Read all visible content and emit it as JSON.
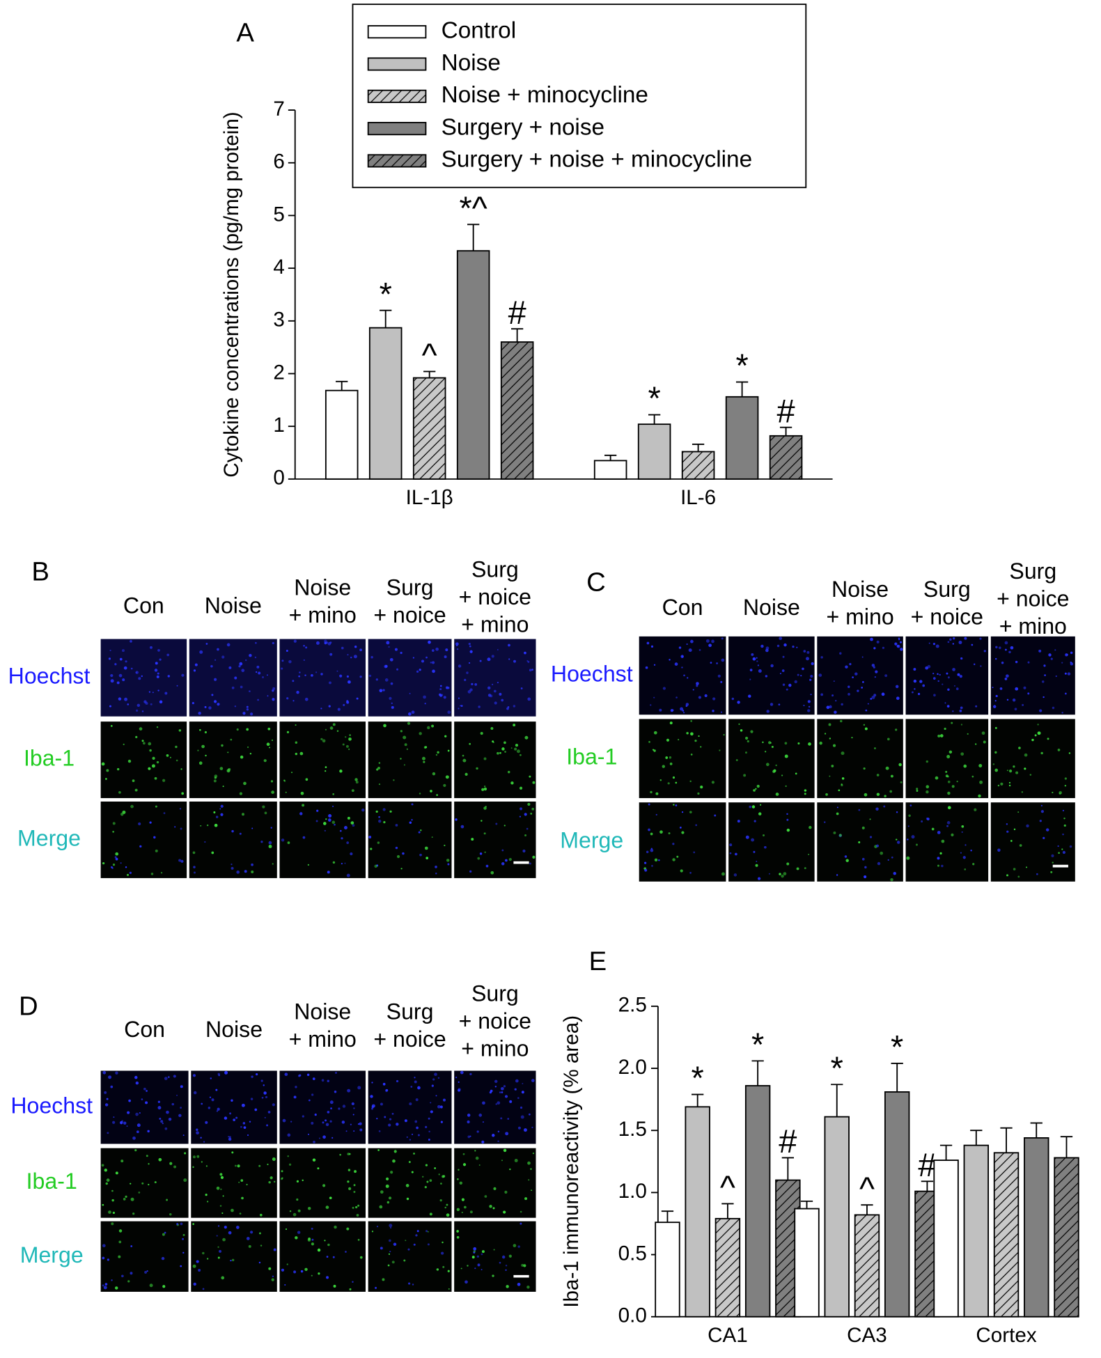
{
  "chart_data": [
    {
      "type": "bar",
      "title": "A",
      "ylabel": "Cytokine concentrations (pg/mg protein)",
      "categories": [
        "IL-1β",
        "IL-6"
      ],
      "ylim": [
        0,
        7
      ],
      "yticks": [
        0,
        1,
        2,
        3,
        4,
        5,
        6,
        7
      ],
      "grid": false,
      "legend": "top",
      "series": [
        {
          "name": "Control",
          "color": "#ffffff",
          "hatch": false,
          "values": [
            1.68,
            0.35
          ],
          "errors": [
            0.17,
            0.1
          ],
          "markers": [
            null,
            null
          ]
        },
        {
          "name": "Noise",
          "color": "#c0c0c0",
          "hatch": false,
          "values": [
            2.87,
            1.04
          ],
          "errors": [
            0.33,
            0.18
          ],
          "markers": [
            "*",
            "*"
          ]
        },
        {
          "name": "Noise + minocycline",
          "color": "#c8c8c8",
          "hatch": true,
          "values": [
            1.92,
            0.52
          ],
          "errors": [
            0.12,
            0.14
          ],
          "markers": [
            "^",
            null
          ]
        },
        {
          "name": "Surgery + noise",
          "color": "#808080",
          "hatch": false,
          "values": [
            4.33,
            1.56
          ],
          "errors": [
            0.5,
            0.28
          ],
          "markers": [
            "*^",
            "*"
          ]
        },
        {
          "name": "Surgery + noise + minocycline",
          "color": "#808080",
          "hatch": true,
          "values": [
            2.6,
            0.82
          ],
          "errors": [
            0.25,
            0.16
          ],
          "markers": [
            "#",
            "#"
          ]
        }
      ]
    },
    {
      "type": "bar",
      "title": "E",
      "ylabel": "Iba-1 immunoreactivity (% area)",
      "categories": [
        "CA1",
        "CA3",
        "Cortex"
      ],
      "ylim": [
        0,
        2.5
      ],
      "grid": false,
      "yticks": [
        {
          "value": 0,
          "label": "0.0"
        },
        {
          "value": 0.5,
          "label": "0.5"
        },
        {
          "value": 1,
          "label": "1.0"
        },
        {
          "value": 1.5,
          "label": "1.5"
        },
        {
          "value": 2,
          "label": "2.0"
        },
        {
          "value": 2.5,
          "label": "2.5"
        }
      ],
      "series": [
        {
          "color": "#ffffff",
          "hatch": false,
          "values": [
            0.76,
            0.87,
            1.26
          ],
          "errors": [
            0.09,
            0.06,
            0.12
          ],
          "markers": [
            null,
            null,
            null
          ]
        },
        {
          "color": "#c0c0c0",
          "hatch": false,
          "values": [
            1.69,
            1.61,
            1.38
          ],
          "errors": [
            0.1,
            0.26,
            0.12
          ],
          "markers": [
            "*",
            "*",
            null
          ]
        },
        {
          "color": "#c8c8c8",
          "hatch": true,
          "values": [
            0.79,
            0.82,
            1.32
          ],
          "errors": [
            0.12,
            0.08,
            0.2
          ],
          "markers": [
            "^",
            "^",
            null
          ]
        },
        {
          "color": "#808080",
          "hatch": false,
          "values": [
            1.86,
            1.81,
            1.44
          ],
          "errors": [
            0.2,
            0.23,
            0.12
          ],
          "markers": [
            "*",
            "*",
            null
          ]
        },
        {
          "color": "#808080",
          "hatch": true,
          "values": [
            1.1,
            1.01,
            1.28
          ],
          "errors": [
            0.18,
            0.08,
            0.17
          ],
          "markers": [
            "#",
            "#",
            null
          ]
        }
      ]
    }
  ],
  "panels": [
    {
      "label": "B",
      "columns": [
        [
          "Con"
        ],
        [
          "Noise"
        ],
        [
          "Noise",
          "+ mino"
        ],
        [
          "Surg",
          "+ noice"
        ],
        [
          "Surg",
          "+ noice",
          "+ mino"
        ]
      ],
      "rows": [
        "Hoechst",
        "Iba-1",
        "Merge"
      ]
    },
    {
      "label": "C",
      "columns": [
        [
          "Con"
        ],
        [
          "Noise"
        ],
        [
          "Noise",
          "+ mino"
        ],
        [
          "Surg",
          "+ noice"
        ],
        [
          "Surg",
          "+ noice",
          "+ mino"
        ]
      ],
      "rows": [
        "Hoechst",
        "Iba-1",
        "Merge"
      ]
    },
    {
      "label": "D",
      "columns": [
        [
          "Con"
        ],
        [
          "Noise"
        ],
        [
          "Noise",
          "+ mino"
        ],
        [
          "Surg",
          "+ noice"
        ],
        [
          "Surg",
          "+ noice",
          "+ mino"
        ]
      ],
      "rows": [
        "Hoechst",
        "Iba-1",
        "Merge"
      ]
    }
  ]
}
